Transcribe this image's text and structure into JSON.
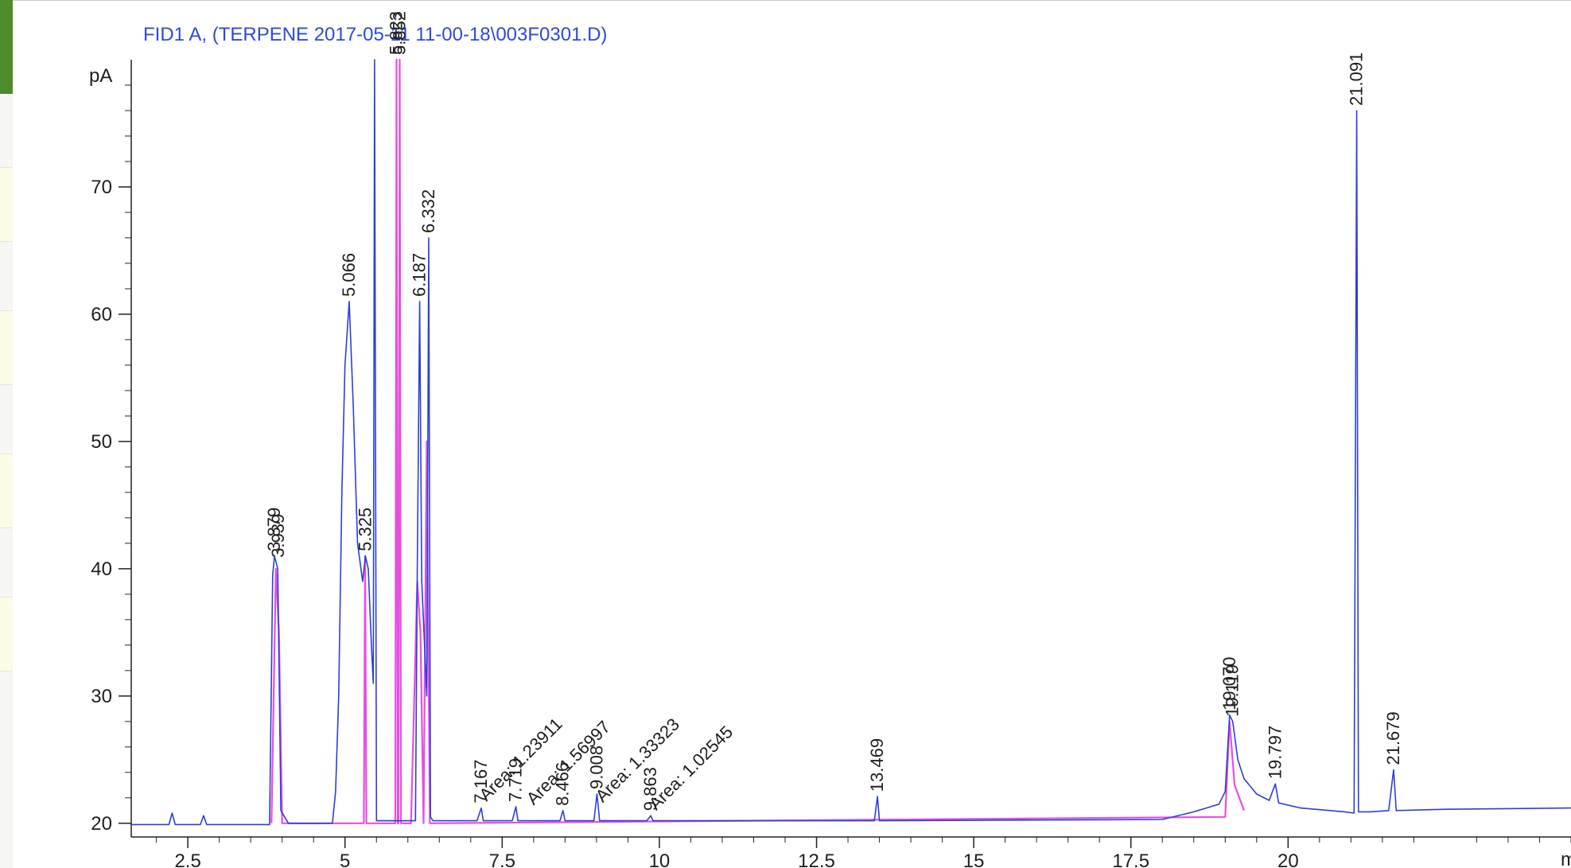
{
  "chart_data": {
    "type": "line",
    "title": "FID1 A,  (TERPENE 2017-05-11 11-00-18\\003F0301.D)",
    "ylabel": "pA",
    "xlabel": "m",
    "xlim": [
      1.6,
      24.5
    ],
    "ylim": [
      19.8,
      80
    ],
    "x_ticks": [
      2.5,
      5,
      7.5,
      10,
      12.5,
      15,
      17.5,
      20
    ],
    "x_tick_labels": [
      "2.5",
      "5",
      "7.5",
      "10",
      "12.5",
      "15",
      "17.5",
      "20"
    ],
    "y_ticks": [
      20,
      30,
      40,
      50,
      60,
      70
    ],
    "y_tick_labels": [
      "20",
      "30",
      "40",
      "50",
      "60",
      "70"
    ],
    "grid": false,
    "series": [
      {
        "color": "#2b3fd6",
        "x": [
          1.6,
          2.2,
          2.25,
          2.3,
          2.7,
          2.75,
          2.8,
          3.8,
          3.85,
          3.879,
          3.93,
          3.98,
          4.1,
          4.8,
          4.85,
          4.9,
          4.95,
          5.0,
          5.066,
          5.13,
          5.2,
          5.28,
          5.325,
          5.37,
          5.42,
          5.45,
          5.47,
          5.5,
          5.8,
          6.12,
          6.15,
          6.187,
          6.22,
          6.3,
          6.332,
          6.36,
          6.4,
          7.1,
          7.167,
          7.2,
          7.66,
          7.719,
          7.75,
          8.42,
          8.466,
          8.5,
          8.96,
          9.008,
          9.05,
          9.8,
          9.863,
          9.9,
          13.42,
          13.469,
          13.5,
          18.0,
          18.5,
          18.9,
          19.0,
          19.07,
          19.119,
          19.2,
          19.3,
          19.5,
          19.7,
          19.797,
          19.85,
          20.2,
          20.9,
          21.05,
          21.091,
          21.12,
          21.3,
          21.6,
          21.679,
          21.72,
          22.5,
          24.5
        ],
        "y": [
          19.9,
          19.9,
          20.8,
          19.9,
          19.9,
          20.6,
          19.9,
          19.9,
          39.5,
          41.0,
          40.0,
          21.0,
          20.0,
          20.0,
          22.5,
          30.0,
          46.0,
          56.0,
          61.0,
          53.0,
          42.0,
          39.0,
          41.0,
          40.0,
          34.0,
          31.0,
          80.0,
          20.2,
          20.2,
          20.2,
          40.0,
          61.0,
          39.0,
          30.0,
          66.0,
          20.5,
          20.2,
          20.2,
          21.2,
          20.2,
          20.2,
          21.3,
          20.2,
          20.2,
          21.0,
          20.2,
          20.2,
          22.3,
          20.2,
          20.2,
          20.6,
          20.2,
          20.2,
          22.1,
          20.2,
          20.3,
          20.9,
          21.5,
          22.5,
          28.5,
          28.0,
          25.0,
          23.5,
          22.3,
          21.8,
          23.1,
          21.6,
          21.2,
          20.9,
          20.8,
          76.0,
          20.9,
          20.9,
          21.0,
          24.2,
          21.0,
          21.1,
          21.2
        ]
      },
      {
        "color": "#e64fe3",
        "x": [
          3.83,
          3.9,
          3.95,
          4.0,
          5.3,
          5.32,
          5.34,
          5.8,
          5.82,
          5.84,
          5.85,
          5.87,
          5.89,
          6.05,
          6.15,
          6.2,
          6.25,
          6.3,
          6.35,
          19.0,
          19.07,
          19.15,
          19.3
        ],
        "y": [
          20.0,
          40.0,
          35.0,
          20.0,
          20.0,
          41.0,
          20.0,
          20.0,
          80.0,
          20.0,
          20.0,
          80.0,
          20.0,
          20.0,
          39.0,
          35.0,
          20.0,
          50.0,
          20.0,
          20.5,
          28.0,
          23.0,
          21.0
        ]
      }
    ],
    "peak_labels": [
      {
        "x": 3.939,
        "y": 40.5,
        "text": "3.939"
      },
      {
        "x": 3.879,
        "y": 41.0,
        "text": "3.879"
      },
      {
        "x": 5.066,
        "y": 61.0,
        "text": "5.066"
      },
      {
        "x": 5.325,
        "y": 41.0,
        "text": "5.325"
      },
      {
        "x": 5.82,
        "y": 80.0,
        "text": "5.823"
      },
      {
        "x": 5.87,
        "y": 80.0,
        "text": "5.852"
      },
      {
        "x": 6.187,
        "y": 61.0,
        "text": "6.187"
      },
      {
        "x": 6.332,
        "y": 66.0,
        "text": "6.332"
      },
      {
        "x": 7.167,
        "y": 21.2,
        "text": "7.167"
      },
      {
        "x": 7.719,
        "y": 21.3,
        "text": "7.719"
      },
      {
        "x": 8.466,
        "y": 21.0,
        "text": "8.466"
      },
      {
        "x": 9.008,
        "y": 22.3,
        "text": "9.008"
      },
      {
        "x": 9.863,
        "y": 20.6,
        "text": "9.863"
      },
      {
        "x": 13.469,
        "y": 22.1,
        "text": "13.469"
      },
      {
        "x": 19.07,
        "y": 28.5,
        "text": "19.070"
      },
      {
        "x": 19.119,
        "y": 28.0,
        "text": "19.119"
      },
      {
        "x": 19.797,
        "y": 23.1,
        "text": "19.797"
      },
      {
        "x": 21.091,
        "y": 76.0,
        "text": "21.091"
      },
      {
        "x": 21.679,
        "y": 24.2,
        "text": "21.679"
      }
    ],
    "area_labels": [
      {
        "x": 7.25,
        "y": 21.3,
        "text": "Area: 1.23911"
      },
      {
        "x": 8.0,
        "y": 21.0,
        "text": "Area: 1.56997"
      },
      {
        "x": 9.1,
        "y": 21.2,
        "text": "Area: 1.33323"
      },
      {
        "x": 9.95,
        "y": 20.6,
        "text": "Area: 1.02545"
      }
    ]
  }
}
